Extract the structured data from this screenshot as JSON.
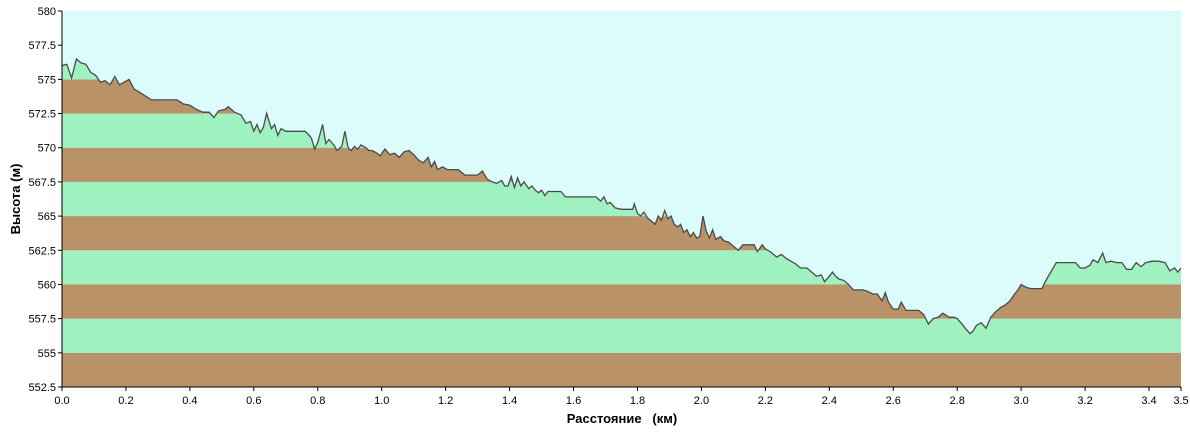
{
  "colors": {
    "sky": "#dcfcfc",
    "band_brown": "#b99268",
    "band_green": "#9ff2c0",
    "profile_line": "#4a4a4a",
    "axis": "#000000"
  },
  "chart_data": {
    "type": "area",
    "xlabel": "Расстояние   (км)",
    "ylabel": "Высота (м)",
    "xlim": [
      0,
      3.5
    ],
    "ylim": [
      552.5,
      580
    ],
    "x_ticks": [
      "0.0",
      "0.2",
      "0.4",
      "0.6",
      "0.8",
      "1.0",
      "1.2",
      "1.4",
      "1.6",
      "1.8",
      "2.0",
      "2.2",
      "2.4",
      "2.6",
      "2.8",
      "3.0",
      "3.2",
      "3.4",
      "3.5"
    ],
    "y_ticks": [
      "580",
      "577.5",
      "575",
      "572.5",
      "570",
      "567.5",
      "565",
      "562.5",
      "560",
      "557.5",
      "555",
      "552.5"
    ],
    "grid": false,
    "bands": [
      {
        "from": 552.5,
        "to": 555,
        "color": "brown"
      },
      {
        "from": 555,
        "to": 557.5,
        "color": "green"
      },
      {
        "from": 557.5,
        "to": 560,
        "color": "brown"
      },
      {
        "from": 560,
        "to": 562.5,
        "color": "green"
      },
      {
        "from": 562.5,
        "to": 565,
        "color": "brown"
      },
      {
        "from": 565,
        "to": 567.5,
        "color": "green"
      },
      {
        "from": 567.5,
        "to": 570,
        "color": "brown"
      },
      {
        "from": 570,
        "to": 572.5,
        "color": "green"
      },
      {
        "from": 572.5,
        "to": 575,
        "color": "brown"
      },
      {
        "from": 575,
        "to": 577.5,
        "color": "green"
      },
      {
        "from": 577.5,
        "to": 580,
        "color": "brown"
      }
    ],
    "series": [
      {
        "points": [
          [
            0.0,
            576.0
          ],
          [
            0.015,
            576.1
          ],
          [
            0.03,
            575.1
          ],
          [
            0.045,
            576.5
          ],
          [
            0.06,
            576.2
          ],
          [
            0.075,
            576.1
          ],
          [
            0.09,
            575.5
          ],
          [
            0.105,
            575.3
          ],
          [
            0.12,
            574.8
          ],
          [
            0.135,
            574.9
          ],
          [
            0.15,
            574.6
          ],
          [
            0.165,
            575.2
          ],
          [
            0.18,
            574.6
          ],
          [
            0.195,
            574.8
          ],
          [
            0.21,
            575.0
          ],
          [
            0.225,
            574.3
          ],
          [
            0.24,
            574.1
          ],
          [
            0.26,
            573.8
          ],
          [
            0.28,
            573.5
          ],
          [
            0.3,
            573.5
          ],
          [
            0.32,
            573.5
          ],
          [
            0.34,
            573.5
          ],
          [
            0.36,
            573.5
          ],
          [
            0.38,
            573.2
          ],
          [
            0.4,
            573.1
          ],
          [
            0.42,
            572.8
          ],
          [
            0.44,
            572.6
          ],
          [
            0.46,
            572.6
          ],
          [
            0.475,
            572.2
          ],
          [
            0.49,
            572.7
          ],
          [
            0.51,
            572.8
          ],
          [
            0.52,
            573.0
          ],
          [
            0.54,
            572.6
          ],
          [
            0.56,
            572.4
          ],
          [
            0.575,
            571.8
          ],
          [
            0.59,
            571.9
          ],
          [
            0.6,
            571.2
          ],
          [
            0.61,
            571.7
          ],
          [
            0.62,
            571.1
          ],
          [
            0.63,
            571.5
          ],
          [
            0.64,
            572.5
          ],
          [
            0.655,
            571.4
          ],
          [
            0.665,
            571.7
          ],
          [
            0.675,
            570.9
          ],
          [
            0.685,
            571.4
          ],
          [
            0.7,
            571.2
          ],
          [
            0.72,
            571.2
          ],
          [
            0.74,
            571.2
          ],
          [
            0.76,
            571.2
          ],
          [
            0.77,
            571.0
          ],
          [
            0.78,
            570.7
          ],
          [
            0.79,
            569.9
          ],
          [
            0.8,
            570.4
          ],
          [
            0.815,
            571.7
          ],
          [
            0.825,
            570.3
          ],
          [
            0.835,
            570.6
          ],
          [
            0.85,
            570.2
          ],
          [
            0.86,
            569.8
          ],
          [
            0.875,
            570.1
          ],
          [
            0.885,
            571.2
          ],
          [
            0.895,
            570.0
          ],
          [
            0.905,
            569.8
          ],
          [
            0.915,
            570.1
          ],
          [
            0.925,
            569.9
          ],
          [
            0.935,
            570.2
          ],
          [
            0.95,
            570.0
          ],
          [
            0.96,
            569.8
          ],
          [
            0.97,
            569.8
          ],
          [
            0.985,
            569.6
          ],
          [
            0.995,
            569.4
          ],
          [
            1.01,
            569.9
          ],
          [
            1.025,
            569.5
          ],
          [
            1.04,
            569.6
          ],
          [
            1.055,
            569.3
          ],
          [
            1.07,
            569.7
          ],
          [
            1.085,
            569.8
          ],
          [
            1.1,
            569.5
          ],
          [
            1.115,
            569.1
          ],
          [
            1.13,
            568.9
          ],
          [
            1.145,
            569.3
          ],
          [
            1.155,
            568.6
          ],
          [
            1.165,
            569.0
          ],
          [
            1.175,
            568.4
          ],
          [
            1.19,
            568.6
          ],
          [
            1.205,
            568.4
          ],
          [
            1.22,
            568.4
          ],
          [
            1.24,
            568.4
          ],
          [
            1.26,
            568.0
          ],
          [
            1.28,
            568.0
          ],
          [
            1.3,
            568.0
          ],
          [
            1.315,
            568.3
          ],
          [
            1.33,
            567.7
          ],
          [
            1.345,
            567.5
          ],
          [
            1.36,
            567.4
          ],
          [
            1.375,
            567.6
          ],
          [
            1.385,
            567.2
          ],
          [
            1.395,
            567.2
          ],
          [
            1.405,
            567.9
          ],
          [
            1.415,
            567.1
          ],
          [
            1.425,
            567.8
          ],
          [
            1.435,
            567.2
          ],
          [
            1.445,
            567.5
          ],
          [
            1.46,
            567.0
          ],
          [
            1.47,
            567.2
          ],
          [
            1.48,
            566.9
          ],
          [
            1.49,
            566.7
          ],
          [
            1.5,
            566.9
          ],
          [
            1.51,
            566.5
          ],
          [
            1.52,
            566.8
          ],
          [
            1.54,
            566.8
          ],
          [
            1.56,
            566.8
          ],
          [
            1.575,
            566.4
          ],
          [
            1.59,
            566.4
          ],
          [
            1.61,
            566.4
          ],
          [
            1.63,
            566.4
          ],
          [
            1.65,
            566.4
          ],
          [
            1.67,
            566.4
          ],
          [
            1.685,
            566.1
          ],
          [
            1.695,
            566.4
          ],
          [
            1.705,
            565.9
          ],
          [
            1.715,
            566.0
          ],
          [
            1.73,
            565.6
          ],
          [
            1.75,
            565.5
          ],
          [
            1.77,
            565.5
          ],
          [
            1.785,
            565.5
          ],
          [
            1.79,
            565.9
          ],
          [
            1.8,
            565.2
          ],
          [
            1.81,
            565.0
          ],
          [
            1.82,
            565.3
          ],
          [
            1.83,
            564.9
          ],
          [
            1.84,
            564.7
          ],
          [
            1.855,
            564.4
          ],
          [
            1.865,
            565.0
          ],
          [
            1.875,
            564.7
          ],
          [
            1.885,
            565.4
          ],
          [
            1.895,
            564.8
          ],
          [
            1.905,
            565.0
          ],
          [
            1.915,
            564.4
          ],
          [
            1.925,
            564.2
          ],
          [
            1.935,
            564.4
          ],
          [
            1.945,
            563.8
          ],
          [
            1.955,
            564.0
          ],
          [
            1.965,
            563.5
          ],
          [
            1.975,
            563.8
          ],
          [
            1.985,
            563.4
          ],
          [
            1.995,
            563.5
          ],
          [
            2.005,
            565.0
          ],
          [
            2.015,
            563.9
          ],
          [
            2.025,
            563.4
          ],
          [
            2.035,
            564.0
          ],
          [
            2.045,
            563.3
          ],
          [
            2.06,
            563.5
          ],
          [
            2.07,
            563.2
          ],
          [
            2.085,
            563.1
          ],
          [
            2.1,
            562.8
          ],
          [
            2.115,
            562.5
          ],
          [
            2.13,
            562.9
          ],
          [
            2.15,
            562.9
          ],
          [
            2.165,
            562.9
          ],
          [
            2.175,
            562.4
          ],
          [
            2.19,
            562.9
          ],
          [
            2.2,
            562.6
          ],
          [
            2.215,
            562.4
          ],
          [
            2.235,
            562.0
          ],
          [
            2.25,
            562.2
          ],
          [
            2.265,
            561.9
          ],
          [
            2.28,
            561.7
          ],
          [
            2.295,
            561.5
          ],
          [
            2.31,
            561.2
          ],
          [
            2.33,
            561.2
          ],
          [
            2.345,
            560.9
          ],
          [
            2.36,
            560.6
          ],
          [
            2.375,
            560.7
          ],
          [
            2.385,
            560.2
          ],
          [
            2.4,
            560.6
          ],
          [
            2.41,
            560.9
          ],
          [
            2.42,
            560.6
          ],
          [
            2.43,
            560.4
          ],
          [
            2.445,
            560.3
          ],
          [
            2.46,
            560.0
          ],
          [
            2.475,
            559.6
          ],
          [
            2.49,
            559.6
          ],
          [
            2.505,
            559.6
          ],
          [
            2.52,
            559.5
          ],
          [
            2.535,
            559.3
          ],
          [
            2.55,
            559.3
          ],
          [
            2.565,
            558.8
          ],
          [
            2.575,
            559.4
          ],
          [
            2.585,
            558.7
          ],
          [
            2.6,
            558.2
          ],
          [
            2.615,
            558.2
          ],
          [
            2.625,
            558.7
          ],
          [
            2.64,
            558.1
          ],
          [
            2.66,
            558.1
          ],
          [
            2.68,
            558.1
          ],
          [
            2.695,
            557.8
          ],
          [
            2.71,
            557.1
          ],
          [
            2.725,
            557.5
          ],
          [
            2.74,
            557.6
          ],
          [
            2.755,
            557.9
          ],
          [
            2.775,
            557.6
          ],
          [
            2.79,
            557.6
          ],
          [
            2.8,
            557.5
          ],
          [
            2.815,
            557.1
          ],
          [
            2.825,
            556.8
          ],
          [
            2.84,
            556.4
          ],
          [
            2.85,
            556.6
          ],
          [
            2.86,
            557.0
          ],
          [
            2.875,
            557.2
          ],
          [
            2.89,
            556.8
          ],
          [
            2.905,
            557.6
          ],
          [
            2.92,
            558.0
          ],
          [
            2.935,
            558.3
          ],
          [
            2.95,
            558.5
          ],
          [
            2.965,
            558.8
          ],
          [
            2.98,
            559.3
          ],
          [
            2.99,
            559.6
          ],
          [
            3.0,
            560.0
          ],
          [
            3.015,
            559.8
          ],
          [
            3.03,
            559.7
          ],
          [
            3.05,
            559.7
          ],
          [
            3.065,
            559.7
          ],
          [
            3.08,
            560.4
          ],
          [
            3.095,
            561.0
          ],
          [
            3.11,
            561.6
          ],
          [
            3.13,
            561.6
          ],
          [
            3.15,
            561.6
          ],
          [
            3.17,
            561.6
          ],
          [
            3.185,
            561.2
          ],
          [
            3.2,
            561.2
          ],
          [
            3.215,
            561.4
          ],
          [
            3.225,
            561.8
          ],
          [
            3.24,
            561.6
          ],
          [
            3.255,
            562.3
          ],
          [
            3.265,
            561.6
          ],
          [
            3.28,
            561.7
          ],
          [
            3.3,
            561.6
          ],
          [
            3.315,
            561.6
          ],
          [
            3.33,
            561.1
          ],
          [
            3.345,
            561.1
          ],
          [
            3.36,
            561.6
          ],
          [
            3.375,
            561.3
          ],
          [
            3.39,
            561.6
          ],
          [
            3.41,
            561.7
          ],
          [
            3.43,
            561.7
          ],
          [
            3.45,
            561.6
          ],
          [
            3.465,
            561.0
          ],
          [
            3.48,
            561.2
          ],
          [
            3.49,
            560.9
          ],
          [
            3.5,
            561.2
          ]
        ]
      }
    ]
  }
}
